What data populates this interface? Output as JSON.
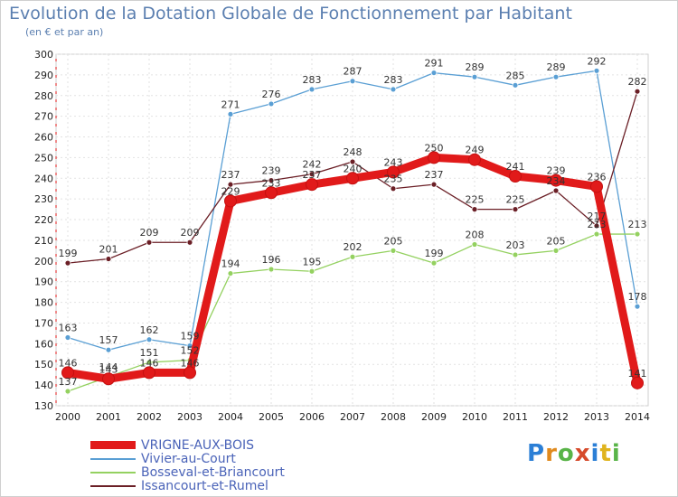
{
  "chart_data": {
    "type": "line",
    "title": "Evolution de la Dotation Globale de Fonctionnement par Habitant",
    "subtitle": "(en € et par an)",
    "xlabel": "",
    "ylabel": "",
    "x": [
      "2000",
      "2001",
      "2002",
      "2003",
      "2004",
      "2005",
      "2006",
      "2007",
      "2008",
      "2009",
      "2010",
      "2011",
      "2012",
      "2013",
      "2014"
    ],
    "ylim": [
      130,
      300
    ],
    "yticks": [
      130,
      140,
      150,
      160,
      170,
      180,
      190,
      200,
      210,
      220,
      230,
      240,
      250,
      260,
      270,
      280,
      290,
      300
    ],
    "legend_position": "bottom-left",
    "series": [
      {
        "name": "VRIGNE-AUX-BOIS",
        "color": "#e11a1a",
        "emphasis": true,
        "values": [
          146,
          143,
          146,
          146,
          229,
          233,
          237,
          240,
          243,
          250,
          249,
          241,
          239,
          236,
          141
        ]
      },
      {
        "name": "Vivier-au-Court",
        "color": "#5a9fd4",
        "values": [
          163,
          157,
          162,
          159,
          271,
          276,
          283,
          287,
          283,
          291,
          289,
          285,
          289,
          292,
          178
        ]
      },
      {
        "name": "Bosseval-et-Briancourt",
        "color": "#94d160",
        "values": [
          137,
          144,
          151,
          152,
          194,
          196,
          195,
          202,
          205,
          199,
          208,
          203,
          205,
          213,
          213
        ]
      },
      {
        "name": "Issancourt-et-Rumel",
        "color": "#6b1f26",
        "values": [
          199,
          201,
          209,
          209,
          237,
          239,
          242,
          248,
          235,
          237,
          225,
          225,
          234,
          217,
          282
        ]
      }
    ]
  },
  "branding": {
    "logo_letters": [
      "P",
      "r",
      "o",
      "x",
      "i",
      "t",
      "i"
    ]
  }
}
